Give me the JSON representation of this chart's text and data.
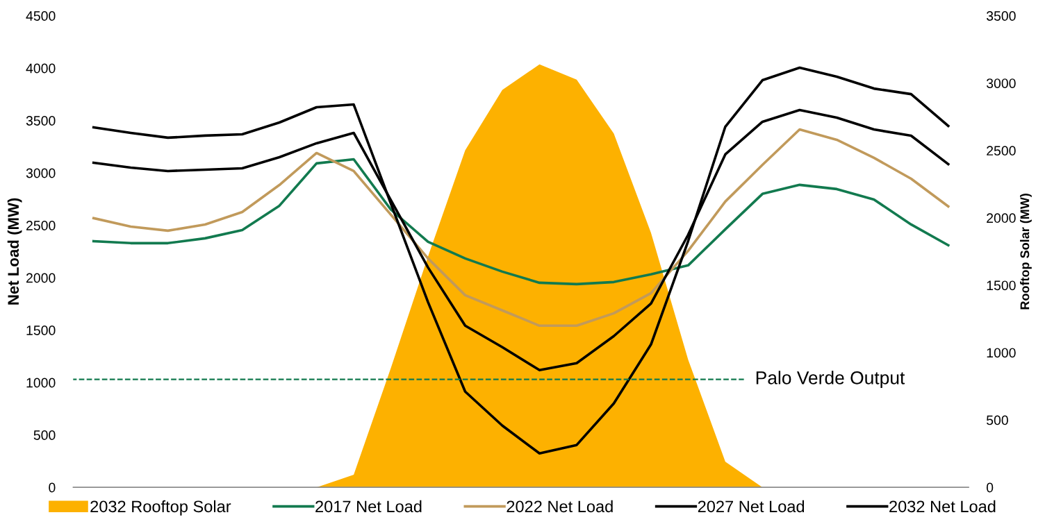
{
  "chart_data": {
    "type": "line",
    "categories": [
      null,
      null,
      null,
      null,
      null,
      null,
      null,
      null,
      null,
      null,
      null,
      null,
      null,
      null,
      null,
      null,
      null,
      null,
      null,
      null,
      null,
      null,
      null,
      null
    ],
    "ylabel": "Net Load (MW)",
    "y2label": "Rooftop Solar (MW)",
    "ylim": [
      0,
      4500
    ],
    "yticks": [
      0,
      500,
      1000,
      1500,
      2000,
      2500,
      3000,
      3500,
      4000,
      4500
    ],
    "y2lim": [
      0,
      3500
    ],
    "y2ticks": [
      0,
      500,
      1000,
      1500,
      2000,
      2500,
      3000,
      3500
    ],
    "grid": false,
    "legend": "bottom",
    "marker": "none",
    "line_style": "solid",
    "series": [
      {
        "name": "2032 Rooftop Solar",
        "type": "area",
        "axis": "y2",
        "color": "#fdb100",
        "values": [
          null,
          null,
          null,
          null,
          null,
          null,
          0,
          93,
          885,
          1714,
          2501,
          2949,
          3139,
          3026,
          2625,
          1889,
          947,
          190,
          0,
          null,
          null,
          null,
          null,
          null
        ]
      },
      {
        "name": "2017 Net Load",
        "color": "#127a4f",
        "values": [
          2349,
          2330,
          2330,
          2376,
          2455,
          2687,
          3091,
          3130,
          2650,
          2343,
          2184,
          2058,
          1952,
          1939,
          1959,
          2032,
          2118,
          2462,
          2800,
          2886,
          2846,
          2746,
          2508,
          2310
        ]
      },
      {
        "name": "2022 Net Load",
        "color": "#c19a5b",
        "values": [
          2568,
          2488,
          2449,
          2508,
          2627,
          2885,
          3190,
          3018,
          2601,
          2184,
          1833,
          1688,
          1542,
          1542,
          1661,
          1853,
          2257,
          2727,
          3077,
          3415,
          3316,
          3144,
          2945,
          2680
        ]
      },
      {
        "name": "2027 Net Load",
        "color": "#000000",
        "values": [
          3097,
          3051,
          3018,
          3031,
          3044,
          3150,
          3283,
          3382,
          2740,
          2098,
          1542,
          1337,
          1118,
          1185,
          1443,
          1754,
          2410,
          3177,
          3488,
          3600,
          3527,
          3415,
          3355,
          3084
        ]
      },
      {
        "name": "2032 Net Load",
        "color": "#000000",
        "values": [
          3435,
          3382,
          3336,
          3356,
          3369,
          3481,
          3627,
          3653,
          2707,
          1767,
          913,
          589,
          324,
          404,
          801,
          1363,
          2350,
          3441,
          3885,
          4004,
          3918,
          3805,
          3752,
          3448
        ]
      }
    ],
    "ref_lines": [
      {
        "axis": "y",
        "value": 1030,
        "label": "Palo Verde Output",
        "color": "#127a4f",
        "line_style": "dashed"
      }
    ]
  }
}
